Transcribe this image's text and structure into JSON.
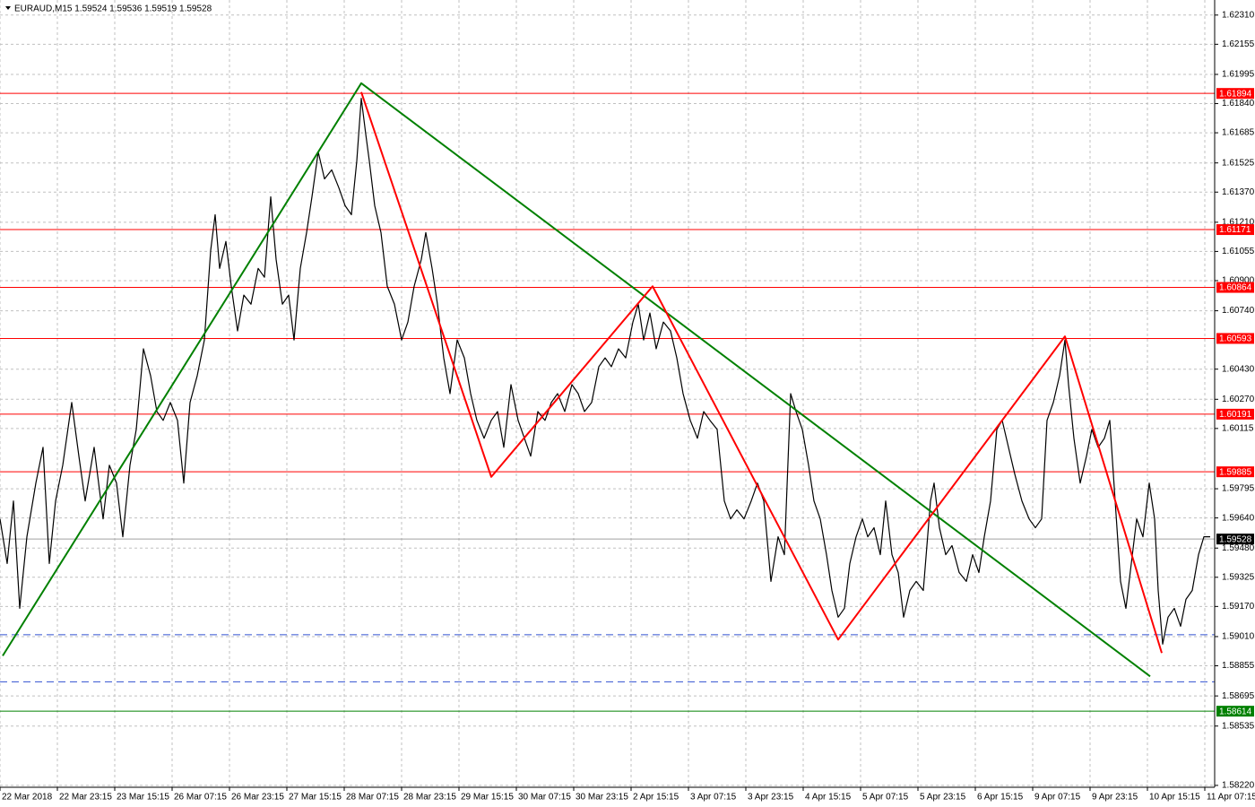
{
  "chart_data": {
    "type": "line",
    "title": "EURAUD,M15  1.59524 1.59536 1.59519 1.59528",
    "xlim": [
      0,
      1355
    ],
    "ylim": [
      1.5821,
      1.6239
    ],
    "grid": true,
    "xticks": [
      {
        "value": 0,
        "label": "22 Mar 2018"
      },
      {
        "value": 64,
        "label": "22 Mar 23:15"
      },
      {
        "value": 128,
        "label": "23 Mar 15:15"
      },
      {
        "value": 192,
        "label": "26 Mar 07:15"
      },
      {
        "value": 256,
        "label": "26 Mar 23:15"
      },
      {
        "value": 320,
        "label": "27 Mar 15:15"
      },
      {
        "value": 384,
        "label": "28 Mar 07:15"
      },
      {
        "value": 448,
        "label": "28 Mar 23:15"
      },
      {
        "value": 512,
        "label": "29 Mar 15:15"
      },
      {
        "value": 576,
        "label": "30 Mar 07:15"
      },
      {
        "value": 640,
        "label": "30 Mar 23:15"
      },
      {
        "value": 704,
        "label": "2 Apr 15:15"
      },
      {
        "value": 768,
        "label": "3 Apr 07:15"
      },
      {
        "value": 832,
        "label": "3 Apr 23:15"
      },
      {
        "value": 896,
        "label": "4 Apr 15:15"
      },
      {
        "value": 960,
        "label": "5 Apr 07:15"
      },
      {
        "value": 1024,
        "label": "5 Apr 23:15"
      },
      {
        "value": 1088,
        "label": "6 Apr 15:15"
      },
      {
        "value": 1152,
        "label": "9 Apr 07:15"
      },
      {
        "value": 1216,
        "label": "9 Apr 23:15"
      },
      {
        "value": 1280,
        "label": "10 Apr 15:15"
      },
      {
        "value": 1344,
        "label": "11 Apr 07:15"
      }
    ],
    "yticks": [
      {
        "value": 1.6231,
        "label": "1.62310"
      },
      {
        "value": 1.62155,
        "label": "1.62155"
      },
      {
        "value": 1.61995,
        "label": "1.61995"
      },
      {
        "value": 1.6184,
        "label": "1.61840"
      },
      {
        "value": 1.61685,
        "label": "1.61685"
      },
      {
        "value": 1.61525,
        "label": "1.61525"
      },
      {
        "value": 1.6137,
        "label": "1.61370"
      },
      {
        "value": 1.6121,
        "label": "1.61210"
      },
      {
        "value": 1.61055,
        "label": "1.61055"
      },
      {
        "value": 1.609,
        "label": "1.60900"
      },
      {
        "value": 1.6074,
        "label": "1.60740"
      },
      {
        "value": 1.6043,
        "label": "1.60430"
      },
      {
        "value": 1.6027,
        "label": "1.60270"
      },
      {
        "value": 1.60115,
        "label": "1.60115"
      },
      {
        "value": 1.59795,
        "label": "1.59795"
      },
      {
        "value": 1.5964,
        "label": "1.59640"
      },
      {
        "value": 1.5948,
        "label": "1.59480"
      },
      {
        "value": 1.59325,
        "label": "1.59325"
      },
      {
        "value": 1.5917,
        "label": "1.59170"
      },
      {
        "value": 1.5901,
        "label": "1.59010"
      },
      {
        "value": 1.58855,
        "label": "1.58855"
      },
      {
        "value": 1.58695,
        "label": "1.58695"
      },
      {
        "value": 1.58535,
        "label": "1.58535"
      },
      {
        "value": 1.5822,
        "label": "1.58220"
      }
    ],
    "series": [
      {
        "name": "EURAUD,M15",
        "color": "#000000",
        "x": [
          0,
          8,
          15,
          22,
          30,
          40,
          48,
          55,
          62,
          70,
          80,
          88,
          95,
          105,
          115,
          122,
          130,
          137,
          145,
          152,
          160,
          168,
          175,
          182,
          190,
          198,
          205,
          212,
          220,
          228,
          235,
          240,
          245,
          252,
          258,
          265,
          272,
          280,
          288,
          295,
          302,
          308,
          315,
          322,
          328,
          335,
          342,
          348,
          355,
          362,
          370,
          378,
          385,
          392,
          398,
          403,
          408,
          412,
          418,
          425,
          432,
          440,
          448,
          455,
          462,
          470,
          475,
          482,
          488,
          495,
          502,
          510,
          518,
          525,
          532,
          540,
          548,
          555,
          562,
          570,
          578,
          585,
          592,
          600,
          608,
          615,
          622,
          630,
          638,
          645,
          652,
          660,
          668,
          675,
          682,
          690,
          698,
          706,
          712,
          718,
          725,
          732,
          740,
          748,
          755,
          762,
          770,
          778,
          785,
          792,
          800,
          808,
          815,
          822,
          830,
          838,
          845,
          852,
          860,
          868,
          875,
          882,
          888,
          895,
          902,
          908,
          915,
          922,
          928,
          935,
          942,
          948,
          955,
          962,
          968,
          975,
          982,
          988,
          995,
          1002,
          1008,
          1015,
          1022,
          1030,
          1038,
          1042,
          1048,
          1055,
          1062,
          1070,
          1078,
          1085,
          1092,
          1098,
          1105,
          1112,
          1118,
          1125,
          1132,
          1140,
          1148,
          1155,
          1162,
          1168,
          1175,
          1182,
          1188,
          1192,
          1198,
          1205,
          1212,
          1218,
          1225,
          1232,
          1238,
          1244,
          1250,
          1256,
          1262,
          1268,
          1275,
          1282,
          1288,
          1292,
          1297,
          1303,
          1310,
          1317,
          1323,
          1330,
          1337,
          1343,
          1350
        ],
        "values": [
          1.59635,
          1.59398,
          1.5973,
          1.5916,
          1.5954,
          1.59825,
          1.60015,
          1.59398,
          1.5973,
          1.5992,
          1.60253,
          1.59968,
          1.5973,
          1.60015,
          1.59635,
          1.5992,
          1.59825,
          1.5954,
          1.5992,
          1.6011,
          1.60538,
          1.60395,
          1.60205,
          1.60158,
          1.60253,
          1.60158,
          1.59825,
          1.60253,
          1.60395,
          1.60585,
          1.6106,
          1.6125,
          1.60965,
          1.61108,
          1.6087,
          1.60633,
          1.60823,
          1.60775,
          1.60965,
          1.60918,
          1.61345,
          1.61013,
          1.60775,
          1.60823,
          1.60585,
          1.60965,
          1.61155,
          1.61345,
          1.61583,
          1.6144,
          1.61488,
          1.61393,
          1.61298,
          1.6125,
          1.61535,
          1.61868,
          1.61678,
          1.61535,
          1.61298,
          1.61155,
          1.6087,
          1.60775,
          1.60585,
          1.6068,
          1.6087,
          1.61013,
          1.61155,
          1.60965,
          1.60775,
          1.6049,
          1.603,
          1.60585,
          1.6049,
          1.603,
          1.60158,
          1.60063,
          1.60158,
          1.60205,
          1.60015,
          1.60348,
          1.60158,
          1.60063,
          1.59968,
          1.60205,
          1.60158,
          1.60253,
          1.603,
          1.60205,
          1.60348,
          1.603,
          1.60205,
          1.60253,
          1.60443,
          1.6049,
          1.60443,
          1.60538,
          1.6049,
          1.6068,
          1.60775,
          1.60585,
          1.60728,
          1.60538,
          1.6068,
          1.60633,
          1.6049,
          1.603,
          1.60158,
          1.60063,
          1.60205,
          1.60158,
          1.6011,
          1.5973,
          1.59635,
          1.59683,
          1.59635,
          1.5973,
          1.59825,
          1.5973,
          1.59303,
          1.5954,
          1.59445,
          1.603,
          1.60205,
          1.6011,
          1.5992,
          1.5973,
          1.59635,
          1.59445,
          1.59255,
          1.59113,
          1.5916,
          1.59398,
          1.5954,
          1.59635,
          1.5954,
          1.59588,
          1.59445,
          1.5973,
          1.59445,
          1.5935,
          1.59113,
          1.59255,
          1.59303,
          1.59255,
          1.5973,
          1.59825,
          1.59588,
          1.59445,
          1.59493,
          1.5935,
          1.59303,
          1.59445,
          1.5935,
          1.5954,
          1.5973,
          1.6011,
          1.60158,
          1.60015,
          1.59873,
          1.5973,
          1.59635,
          1.59588,
          1.59635,
          1.60158,
          1.60253,
          1.60395,
          1.60585,
          1.60348,
          1.60063,
          1.59825,
          1.59968,
          1.6011,
          1.60015,
          1.60063,
          1.60158,
          1.5973,
          1.59303,
          1.5916,
          1.59398,
          1.59635,
          1.5954,
          1.59825,
          1.59635,
          1.59255,
          1.5897,
          1.59113,
          1.5916,
          1.59065,
          1.59208,
          1.59255,
          1.59445,
          1.5954,
          1.5954
        ]
      }
    ],
    "zigzags": [
      {
        "color": "#008000",
        "x": [
          3,
          403,
          1283
        ],
        "values": [
          1.58908,
          1.61948,
          1.58799
        ]
      },
      {
        "color": "#ff0000",
        "x": [
          403,
          548,
          728,
          935,
          1188,
          1296
        ],
        "values": [
          1.61901,
          1.59858,
          1.6087,
          1.58994,
          1.60604,
          1.58923
        ]
      }
    ],
    "levels": [
      {
        "value": 1.61894,
        "color": "#ff0000"
      },
      {
        "value": 1.61171,
        "color": "#ff0000"
      },
      {
        "value": 1.60864,
        "color": "#ff0000"
      },
      {
        "value": 1.60593,
        "color": "#ff0000"
      },
      {
        "value": 1.60191,
        "color": "#ff0000"
      },
      {
        "value": 1.59885,
        "color": "#ff0000"
      },
      {
        "value": 1.59528,
        "color": "#a0a0a0",
        "label_color": "#000000"
      },
      {
        "value": 1.58614,
        "color": "#008000"
      }
    ],
    "dashed_levels": [
      {
        "value": 1.5902,
        "color": "#3050d0"
      },
      {
        "value": 1.5877,
        "color": "#3050d0"
      }
    ]
  }
}
